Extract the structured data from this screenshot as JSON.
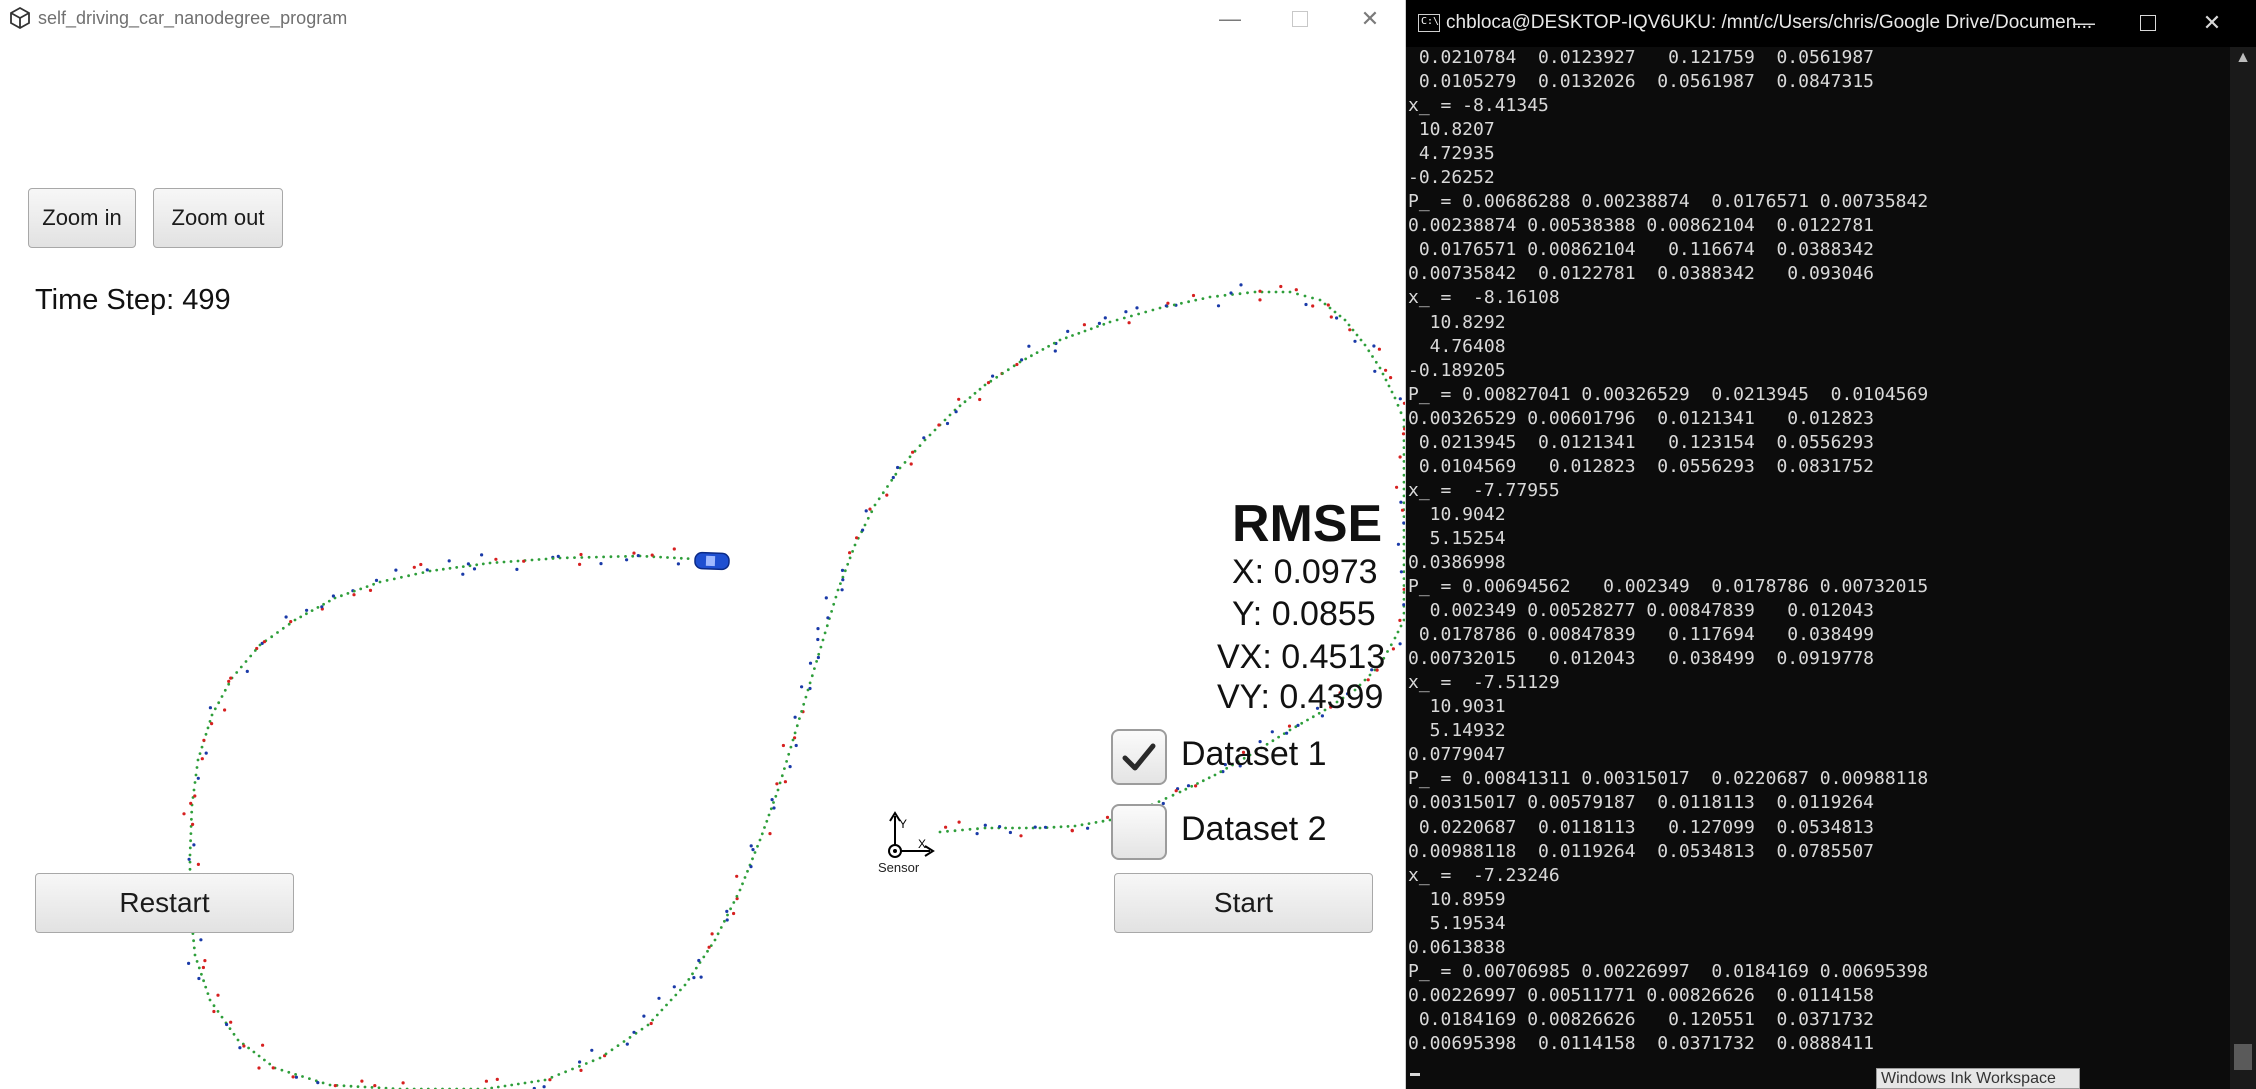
{
  "simulator": {
    "window_title": "self_driving_car_nanodegree_program",
    "buttons": {
      "zoom_in": "Zoom in",
      "zoom_out": "Zoom out",
      "restart": "Restart",
      "start": "Start"
    },
    "time_step_label": "Time Step: 499",
    "rmse": {
      "title": "RMSE",
      "x": "X: 0.0973",
      "y": "Y: 0.0855",
      "vx": "VX: 0.4513",
      "vy": "VY: 0.4399"
    },
    "datasets": [
      {
        "label": "Dataset 1",
        "checked": true
      },
      {
        "label": "Dataset 2",
        "checked": false
      }
    ],
    "sensor_label": "Sensor",
    "sensor_axes": {
      "x": "X",
      "y": "Y"
    },
    "colors": {
      "estimate_points": "#2e9e3a",
      "lidar_points": "#d62020",
      "radar_points": "#1a3aa8",
      "car": "#1e4fd1"
    }
  },
  "terminal": {
    "window_title": "chbloca@DESKTOP-IQV6UKU: /mnt/c/Users/chris/Google Drive/Documen...",
    "lines": [
      " 0.0210784  0.0123927   0.121759  0.0561987",
      " 0.0105279  0.0132026  0.0561987  0.0847315",
      "x_ = -8.41345",
      " 10.8207",
      " 4.72935",
      "-0.26252",
      "P_ = 0.00686288 0.00238874  0.0176571 0.00735842",
      "0.00238874 0.00538388 0.00862104  0.0122781",
      " 0.0176571 0.00862104   0.116674  0.0388342",
      "0.00735842  0.0122781  0.0388342   0.093046",
      "x_ =  -8.16108",
      "  10.8292",
      "  4.76408",
      "-0.189205",
      "P_ = 0.00827041 0.00326529  0.0213945  0.0104569",
      "0.00326529 0.00601796  0.0121341   0.012823",
      " 0.0213945  0.0121341   0.123154  0.0556293",
      " 0.0104569   0.012823  0.0556293  0.0831752",
      "x_ =  -7.77955",
      "  10.9042",
      "  5.15254",
      "0.0386998",
      "P_ = 0.00694562   0.002349  0.0178786 0.00732015",
      "  0.002349 0.00528277 0.00847839   0.012043",
      " 0.0178786 0.00847839   0.117694   0.038499",
      "0.00732015   0.012043   0.038499  0.0919778",
      "x_ =  -7.51129",
      "  10.9031",
      "  5.14932",
      "0.0779047",
      "P_ = 0.00841311 0.00315017  0.0220687 0.00988118",
      "0.00315017 0.00579187  0.0118113  0.0119264",
      " 0.0220687  0.0118113   0.127099  0.0534813",
      "0.00988118  0.0119264  0.0534813  0.0785507",
      "x_ =  -7.23246",
      "  10.8959",
      "  5.19534",
      "0.0613838",
      "P_ = 0.00706985 0.00226997  0.0184169 0.00695398",
      "0.00226997 0.00511771 0.00826626  0.0114158",
      " 0.0184169 0.00826626   0.120551  0.0371732",
      "0.00695398  0.0114158  0.0371732  0.0888411"
    ],
    "tooltip": "Windows Ink Workspace"
  }
}
